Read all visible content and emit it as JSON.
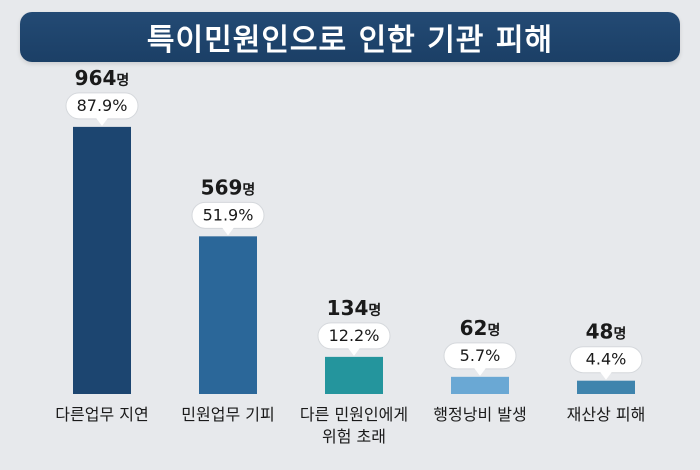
{
  "chart_data": {
    "type": "bar",
    "title": "특이민원인으로 인한 기관 피해",
    "categories": [
      [
        "다른업무 지연"
      ],
      [
        "민원업무 기피"
      ],
      [
        "다른 민원인에게",
        "위험 초래"
      ],
      [
        "행정낭비 발생"
      ],
      [
        "재산상 피해"
      ]
    ],
    "values": [
      964,
      569,
      134,
      62,
      48
    ],
    "unit": "명",
    "percent_labels": [
      "87.9%",
      "51.9%",
      "12.2%",
      "5.7%",
      "4.4%"
    ],
    "colors": [
      "#1c4570",
      "#2b6799",
      "#24959d",
      "#6aa8d4",
      "#3f84ad"
    ],
    "ylim": [
      0,
      1100
    ],
    "grid": false,
    "legend": "none"
  }
}
